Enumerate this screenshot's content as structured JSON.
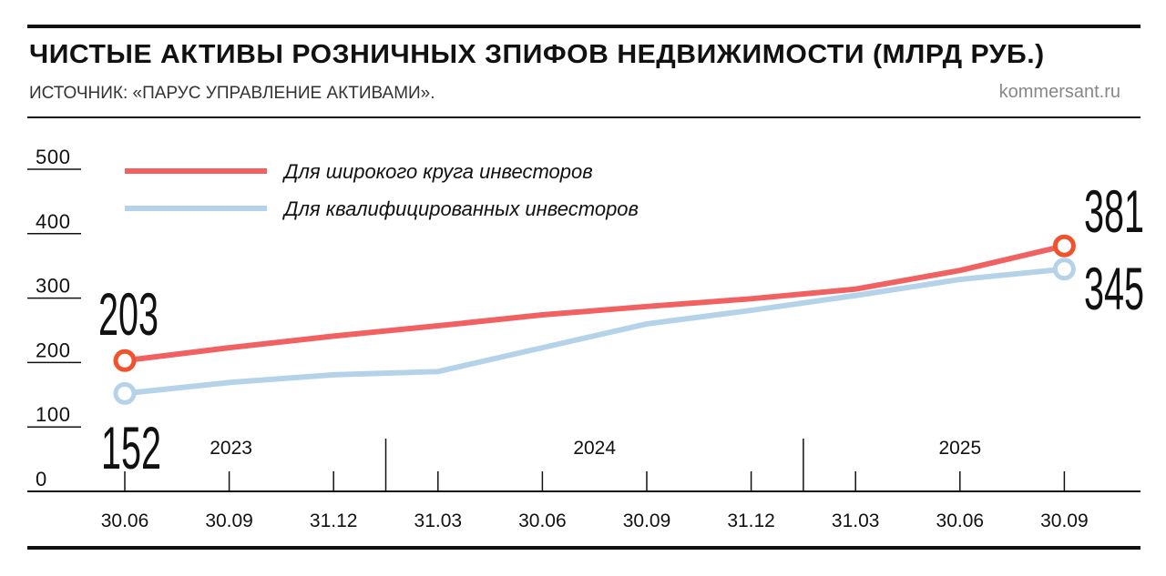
{
  "header": {
    "title": "ЧИСТЫЕ АКТИВЫ РОЗНИЧНЫХ ЗПИФОВ НЕДВИЖИМОСТИ (МЛРД РУБ.)",
    "source": "ИСТОЧНИК: «ПАРУС УПРАВЛЕНИЕ АКТИВАМИ».",
    "site": "kommersant.ru"
  },
  "chart_data": {
    "type": "line",
    "title": "ЧИСТЫЕ АКТИВЫ РОЗНИЧНЫХ ЗПИФОВ НЕДВИЖИМОСТИ (МЛРД РУБ.)",
    "x": [
      "30.06",
      "30.09",
      "31.12",
      "31.03",
      "30.06",
      "30.09",
      "31.12",
      "31.03",
      "30.06",
      "30.09"
    ],
    "years": [
      {
        "label": "2023",
        "from": 0,
        "to": 2
      },
      {
        "label": "2024",
        "from": 3,
        "to": 6
      },
      {
        "label": "2025",
        "from": 7,
        "to": 9
      }
    ],
    "yticks": [
      0,
      100,
      200,
      300,
      400,
      500
    ],
    "ylim": [
      0,
      500
    ],
    "grid": false,
    "legend_position": "top-left",
    "series": [
      {
        "name": "Для широкого круга инвесторов",
        "color": "#f26161",
        "marker_color": "#f0522e",
        "values": [
          203,
          223,
          241,
          257,
          274,
          287,
          299,
          314,
          343,
          381
        ],
        "labels": {
          "first": "203",
          "last": "381"
        }
      },
      {
        "name": "Для квалифицированных инвесторов",
        "color": "#b5d3e8",
        "marker_color": "#b5d3e8",
        "values": [
          152,
          169,
          181,
          186,
          223,
          260,
          281,
          304,
          329,
          345
        ],
        "labels": {
          "first": "152",
          "last": "345"
        }
      }
    ]
  }
}
